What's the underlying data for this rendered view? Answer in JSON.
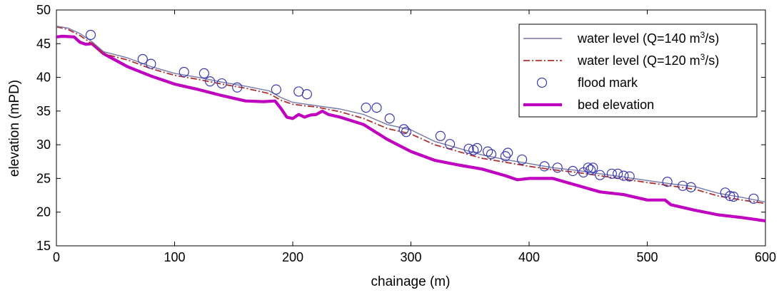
{
  "chart_data": {
    "type": "line",
    "xlabel": "chainage (m)",
    "ylabel": "elevation (mPD)",
    "xlim": [
      0,
      600
    ],
    "ylim": [
      15,
      50
    ],
    "x_ticks": [
      "0",
      "100",
      "200",
      "300",
      "400",
      "500",
      "600"
    ],
    "y_ticks": [
      "15",
      "20",
      "25",
      "30",
      "35",
      "40",
      "45",
      "50"
    ],
    "grid": false,
    "legend_position": "top-right",
    "legend": [
      {
        "label": "water level (Q=140 m",
        "sup": "3",
        "tail": "/s)",
        "style": "solid-line",
        "color": "#7777aa"
      },
      {
        "label": "water level (Q=120 m",
        "sup": "3",
        "tail": "/s)",
        "style": "dash-dot-line",
        "color": "#b03030"
      },
      {
        "label": "flood mark",
        "sup": "",
        "tail": "",
        "style": "circle-marker",
        "color": "#3a3ab0"
      },
      {
        "label": "bed elevation",
        "sup": "",
        "tail": "",
        "style": "thick-line",
        "color": "#c000c0"
      }
    ],
    "series": [
      {
        "name": "water level (Q=140 m3/s)",
        "color": "#7777aa",
        "x": [
          0,
          10,
          20,
          30,
          40,
          60,
          80,
          100,
          120,
          140,
          160,
          180,
          190,
          200,
          220,
          240,
          260,
          280,
          300,
          320,
          340,
          360,
          380,
          400,
          420,
          440,
          460,
          480,
          500,
          520,
          540,
          560,
          580,
          600
        ],
        "y": [
          47.6,
          47.3,
          46.5,
          45.3,
          43.8,
          42.9,
          41.6,
          40.6,
          40.0,
          39.3,
          38.7,
          38.0,
          37.0,
          36.3,
          35.8,
          35.3,
          34.5,
          33.0,
          32.2,
          30.5,
          29.5,
          28.5,
          27.8,
          27.2,
          26.6,
          26.2,
          25.7,
          25.2,
          24.7,
          24.2,
          23.8,
          22.8,
          22.2,
          21.5
        ]
      },
      {
        "name": "water level (Q=120 m3/s)",
        "color": "#b03030",
        "x": [
          0,
          10,
          20,
          30,
          40,
          60,
          80,
          100,
          120,
          140,
          160,
          180,
          190,
          200,
          220,
          240,
          260,
          280,
          300,
          320,
          340,
          360,
          380,
          400,
          420,
          440,
          460,
          480,
          500,
          520,
          540,
          560,
          580,
          600
        ],
        "y": [
          47.5,
          47.1,
          46.2,
          45.0,
          43.5,
          42.6,
          41.3,
          40.3,
          39.7,
          39.0,
          38.4,
          37.6,
          36.6,
          36.0,
          35.6,
          34.9,
          33.9,
          32.4,
          31.6,
          30.0,
          29.0,
          28.0,
          27.4,
          26.8,
          26.3,
          25.9,
          25.4,
          24.9,
          24.4,
          23.9,
          23.4,
          22.4,
          21.8,
          21.3
        ]
      },
      {
        "name": "flood mark",
        "color": "#3a3ab0",
        "x": [
          29,
          73,
          80,
          108,
          125,
          130,
          140,
          153,
          186,
          205,
          212,
          262,
          271,
          282,
          294,
          296,
          325,
          333,
          349,
          353,
          356,
          365,
          368,
          380,
          382,
          394,
          413,
          424,
          437,
          446,
          450,
          452,
          454,
          460,
          470,
          475,
          480,
          485,
          517,
          530,
          537,
          566,
          570,
          573,
          590
        ],
        "y": [
          46.3,
          42.7,
          42.0,
          40.8,
          40.6,
          39.4,
          39.1,
          38.5,
          38.2,
          37.9,
          37.5,
          35.5,
          35.5,
          33.9,
          32.3,
          31.9,
          31.3,
          30.1,
          29.4,
          29.2,
          29.5,
          29.0,
          28.6,
          28.3,
          28.8,
          27.8,
          26.8,
          26.6,
          26.1,
          25.9,
          26.6,
          26.3,
          26.6,
          25.5,
          25.7,
          25.7,
          25.4,
          25.3,
          24.5,
          23.9,
          23.7,
          22.9,
          22.4,
          22.3,
          22.0
        ]
      },
      {
        "name": "bed elevation",
        "color": "#c000c0",
        "x": [
          0,
          5,
          15,
          20,
          25,
          30,
          40,
          60,
          80,
          100,
          110,
          120,
          140,
          160,
          175,
          185,
          190,
          195,
          200,
          205,
          210,
          215,
          220,
          225,
          230,
          240,
          260,
          280,
          300,
          320,
          340,
          360,
          380,
          390,
          400,
          420,
          440,
          460,
          480,
          500,
          515,
          520,
          540,
          560,
          580,
          600
        ],
        "y": [
          46.0,
          46.1,
          46.0,
          45.2,
          44.9,
          45.0,
          43.5,
          41.6,
          40.2,
          39.0,
          38.6,
          38.2,
          37.3,
          36.5,
          36.4,
          36.5,
          35.4,
          34.1,
          33.9,
          34.5,
          34.1,
          34.4,
          34.5,
          35.0,
          34.5,
          34.1,
          33.0,
          30.8,
          29.0,
          27.7,
          27.0,
          26.4,
          25.4,
          24.8,
          25.0,
          25.0,
          24.0,
          23.0,
          22.6,
          21.8,
          21.8,
          21.1,
          20.3,
          19.6,
          19.2,
          18.7
        ]
      }
    ]
  }
}
